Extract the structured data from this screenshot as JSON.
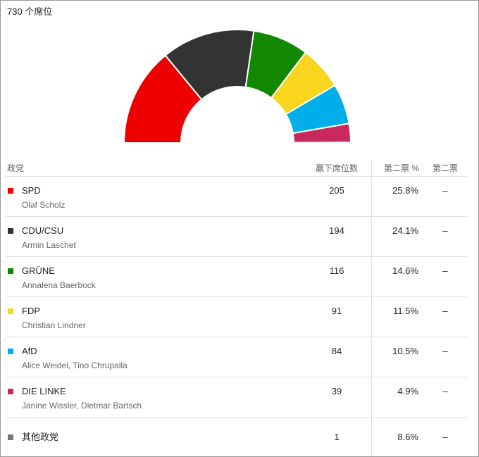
{
  "header": {
    "title": "730 个席位"
  },
  "chart_data": {
    "type": "hemicycle",
    "categories": [
      "SPD",
      "CDU/CSU",
      "GRÜNE",
      "FDP",
      "AfD",
      "DIE LINKE",
      "其他政党"
    ],
    "values": [
      205,
      194,
      116,
      91,
      84,
      39,
      1
    ],
    "colors": [
      "#ee0000",
      "#333333",
      "#118800",
      "#fad51f",
      "#00aeea",
      "#c8285d",
      "#777777"
    ]
  },
  "table": {
    "columns": [
      "政党",
      "赢下席位数",
      "第二票 %",
      "第二票"
    ],
    "rows": [
      {
        "leader": "Olaf Scholz",
        "vote_share": "25.8%",
        "second_vote": "–"
      },
      {
        "leader": "Armin Laschet",
        "vote_share": "24.1%",
        "second_vote": "–"
      },
      {
        "leader": "Annalena Baerbock",
        "vote_share": "14.6%",
        "second_vote": "–"
      },
      {
        "leader": "Christian Lindner",
        "vote_share": "11.5%",
        "second_vote": "–"
      },
      {
        "leader": "Alice Weidel, Tino Chrupalla",
        "vote_share": "10.5%",
        "second_vote": "–"
      },
      {
        "leader": "Janine Wissler, Dietmar Bartsch",
        "vote_share": "4.9%",
        "second_vote": "–"
      },
      {
        "vote_share": "8.6%",
        "second_vote": "–"
      }
    ]
  }
}
